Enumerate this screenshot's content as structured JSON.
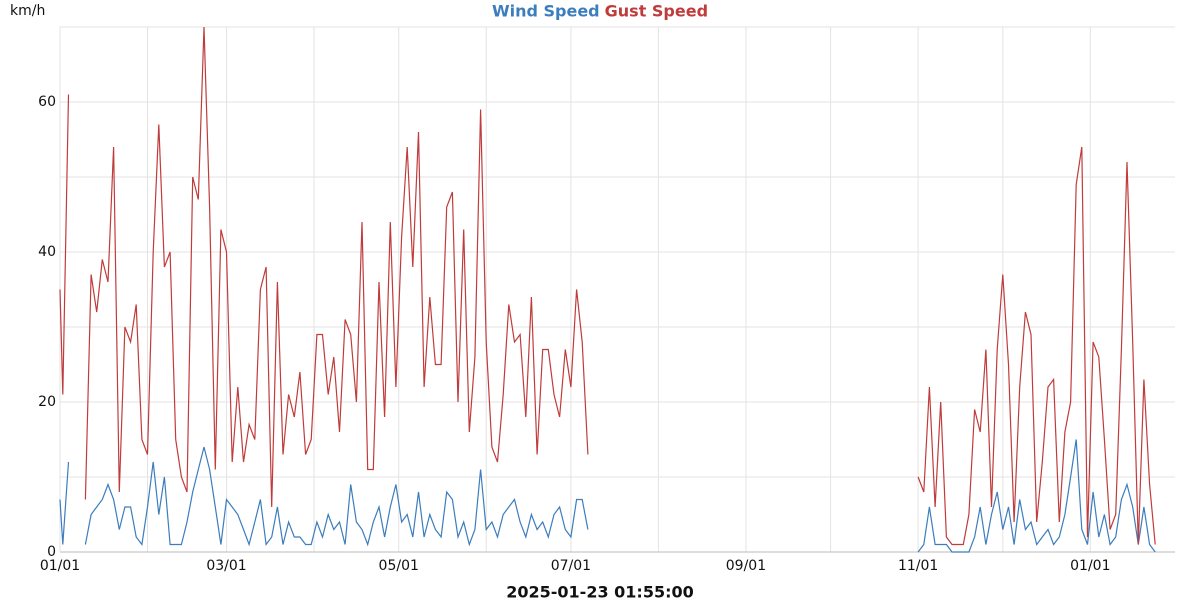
{
  "chart_data": {
    "type": "line",
    "y_label": "km/h",
    "x_label": "2025-01-23 01:55:00",
    "xlim": [
      0,
      395
    ],
    "xticks": [
      {
        "value": 0,
        "label": "01/01"
      },
      {
        "value": 59,
        "label": "03/01"
      },
      {
        "value": 120,
        "label": "05/01"
      },
      {
        "value": 181,
        "label": "07/01"
      },
      {
        "value": 243,
        "label": "09/01"
      },
      {
        "value": 304,
        "label": "11/01"
      },
      {
        "value": 365,
        "label": "01/01"
      }
    ],
    "minor_xticks": [
      31,
      90,
      151,
      212,
      273,
      334
    ],
    "ylim": [
      0,
      70
    ],
    "yticks": [
      0,
      20,
      40,
      60
    ],
    "minor_yticks": [
      10,
      30,
      50,
      70
    ],
    "grid": true,
    "x": [
      0,
      1,
      3,
      6,
      9,
      11,
      13,
      15,
      17,
      19,
      21,
      23,
      25,
      27,
      29,
      31,
      33,
      35,
      37,
      39,
      41,
      43,
      45,
      47,
      49,
      51,
      53,
      55,
      57,
      59,
      61,
      63,
      65,
      67,
      69,
      71,
      73,
      75,
      77,
      79,
      81,
      83,
      85,
      87,
      89,
      91,
      93,
      95,
      97,
      99,
      101,
      103,
      105,
      107,
      109,
      111,
      113,
      115,
      117,
      119,
      121,
      123,
      125,
      127,
      129,
      131,
      133,
      135,
      137,
      139,
      141,
      143,
      145,
      147,
      149,
      151,
      153,
      155,
      157,
      159,
      161,
      163,
      165,
      167,
      169,
      171,
      173,
      175,
      177,
      179,
      181,
      183,
      185,
      187,
      246,
      304,
      306,
      308,
      310,
      312,
      314,
      316,
      318,
      320,
      322,
      324,
      326,
      328,
      330,
      332,
      334,
      336,
      338,
      340,
      342,
      344,
      346,
      348,
      350,
      352,
      354,
      356,
      358,
      360,
      362,
      364,
      366,
      368,
      370,
      372,
      374,
      376,
      378,
      380,
      382,
      384,
      386,
      388
    ],
    "series": [
      {
        "name": "Wind Speed",
        "color": "#3b7dbd",
        "values": [
          7,
          1,
          12,
          null,
          1,
          5,
          6,
          7,
          9,
          7,
          3,
          6,
          6,
          2,
          1,
          6,
          12,
          5,
          10,
          1,
          1,
          1,
          4,
          8,
          11,
          14,
          11,
          6,
          1,
          7,
          6,
          5,
          3,
          1,
          4,
          7,
          1,
          2,
          6,
          1,
          4,
          2,
          2,
          1,
          1,
          4,
          2,
          5,
          3,
          4,
          1,
          9,
          4,
          3,
          1,
          4,
          6,
          2,
          6,
          9,
          4,
          5,
          2,
          8,
          2,
          5,
          3,
          2,
          8,
          7,
          2,
          4,
          1,
          3,
          11,
          3,
          4,
          2,
          5,
          6,
          7,
          4,
          2,
          5,
          3,
          4,
          2,
          5,
          6,
          3,
          2,
          7,
          7,
          3,
          null,
          0,
          1,
          6,
          1,
          1,
          1,
          0,
          0,
          0,
          0,
          2,
          6,
          1,
          5,
          8,
          3,
          6,
          1,
          7,
          3,
          4,
          1,
          2,
          3,
          1,
          2,
          5,
          10,
          15,
          3,
          1,
          8,
          2,
          5,
          1,
          2,
          7,
          9,
          6,
          1,
          6,
          1,
          0
        ]
      },
      {
        "name": "Gust Speed",
        "color": "#c03b3b",
        "values": [
          35,
          21,
          61,
          null,
          7,
          37,
          32,
          39,
          36,
          54,
          8,
          30,
          28,
          33,
          15,
          13,
          40,
          57,
          38,
          40,
          15,
          10,
          8,
          50,
          47,
          70,
          46,
          11,
          43,
          40,
          12,
          22,
          12,
          17,
          15,
          35,
          38,
          6,
          36,
          13,
          21,
          18,
          24,
          13,
          15,
          29,
          29,
          21,
          26,
          16,
          31,
          29,
          20,
          44,
          11,
          11,
          36,
          18,
          44,
          22,
          42,
          54,
          38,
          56,
          22,
          34,
          25,
          25,
          46,
          48,
          20,
          43,
          16,
          26,
          59,
          28,
          14,
          12,
          21,
          33,
          28,
          29,
          18,
          34,
          13,
          27,
          27,
          21,
          18,
          27,
          22,
          35,
          28,
          13,
          null,
          10,
          8,
          22,
          6,
          20,
          2,
          1,
          1,
          1,
          5,
          19,
          16,
          27,
          6,
          27,
          37,
          25,
          4,
          22,
          32,
          29,
          4,
          12,
          22,
          23,
          4,
          16,
          20,
          49,
          54,
          2,
          28,
          26,
          15,
          3,
          5,
          27,
          52,
          28,
          1,
          23,
          9,
          1
        ]
      }
    ]
  }
}
